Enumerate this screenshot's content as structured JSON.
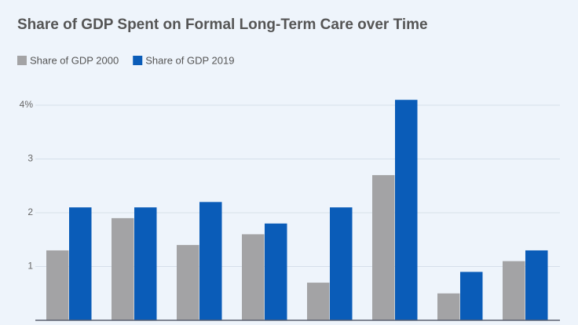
{
  "chart_data": {
    "type": "bar",
    "title": "Share of GDP Spent on Formal Long-Term Care over Time",
    "categories": [
      null,
      null,
      null,
      null,
      null,
      null,
      null,
      null
    ],
    "series": [
      {
        "name": "Share of GDP 2000",
        "color": "#a3a3a5",
        "values": [
          1.3,
          1.9,
          1.4,
          1.6,
          0.7,
          2.7,
          0.5,
          1.1
        ]
      },
      {
        "name": "Share of GDP 2019",
        "color": "#0a5cb8",
        "values": [
          2.1,
          2.1,
          2.2,
          1.8,
          2.1,
          4.1,
          0.9,
          1.3
        ]
      }
    ],
    "ylim": [
      0,
      4.3
    ],
    "yticks": [
      1,
      2,
      3,
      {
        "value": 4,
        "label": "4%"
      }
    ],
    "grid": true,
    "legend": "top-left"
  }
}
